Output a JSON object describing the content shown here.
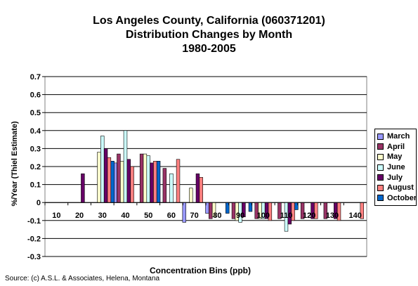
{
  "chart_data": {
    "type": "bar",
    "title_lines": [
      "Los Angeles County, California (060371201)",
      "Distribution Changes by Month",
      "1980-2005"
    ],
    "xlabel": "Concentration Bins (ppb)",
    "ylabel": "%/Year (Thiel Estimate)",
    "categories": [
      "10",
      "20",
      "30",
      "40",
      "50",
      "60",
      "70",
      "80",
      "90",
      "100",
      "110",
      "120",
      "130",
      "140"
    ],
    "ylim": [
      -0.3,
      0.7
    ],
    "yticks": [
      "0.7",
      "0.6",
      "0.5",
      "0.4",
      "0.3",
      "0.2",
      "0.1",
      "0",
      "-0.1",
      "-0.2",
      "-0.3"
    ],
    "grid": true,
    "legend_position": "right",
    "series": [
      {
        "name": "March",
        "color": "#9999ff",
        "values": [
          0,
          0,
          0,
          0.22,
          0,
          0,
          -0.11,
          -0.06,
          0,
          0,
          0,
          0,
          0,
          0
        ]
      },
      {
        "name": "April",
        "color": "#993366",
        "values": [
          0,
          0,
          0,
          0.27,
          0.27,
          0.19,
          0,
          -0.09,
          -0.09,
          -0.09,
          -0.09,
          -0.09,
          -0.09,
          0
        ]
      },
      {
        "name": "May",
        "color": "#ffffcc",
        "values": [
          0,
          0,
          0.28,
          0.23,
          0.27,
          0,
          0.08,
          -0.08,
          -0.1,
          -0.09,
          0,
          0,
          0,
          0
        ]
      },
      {
        "name": "June",
        "color": "#ccffff",
        "values": [
          0,
          0,
          0.37,
          0.4,
          0.26,
          0.16,
          0,
          0,
          -0.11,
          -0.09,
          -0.16,
          0,
          0,
          0
        ]
      },
      {
        "name": "July",
        "color": "#660066",
        "values": [
          0,
          0.16,
          0.3,
          0.24,
          0.22,
          0,
          0.16,
          0,
          -0.08,
          -0.09,
          -0.12,
          -0.09,
          -0.09,
          0
        ]
      },
      {
        "name": "August",
        "color": "#ff8080",
        "values": [
          0,
          0,
          0.25,
          0.2,
          0.23,
          0.24,
          0.14,
          0,
          0,
          -0.1,
          -0.1,
          -0.09,
          -0.1,
          -0.09
        ]
      },
      {
        "name": "October",
        "color": "#0066cc",
        "values": [
          0,
          0,
          0.23,
          0,
          0.23,
          0,
          0,
          -0.06,
          -0.05,
          0,
          -0.04,
          0,
          0,
          0
        ]
      }
    ]
  },
  "source": "Source: (c) A.S.L. & Associates, Helena, Montana"
}
